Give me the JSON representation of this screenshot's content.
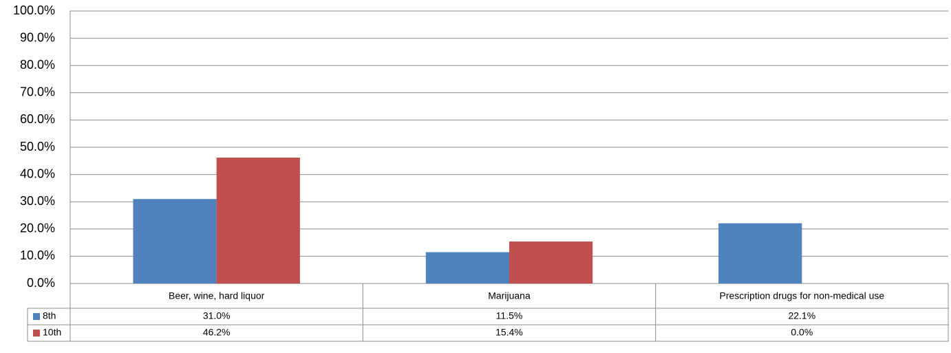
{
  "chart_data": {
    "type": "bar",
    "categories": [
      "Beer, wine, hard liquor",
      "Marijuana",
      "Prescription drugs for non-medical use"
    ],
    "series": [
      {
        "name": "8th",
        "color": "#4f81bd",
        "values": [
          31.0,
          11.5,
          22.1
        ],
        "value_labels": [
          "31.0%",
          "11.5%",
          "22.1%"
        ]
      },
      {
        "name": "10th",
        "color": "#c0504d",
        "values": [
          46.2,
          15.4,
          0.0
        ],
        "value_labels": [
          "46.2%",
          "15.4%",
          "0.0%"
        ]
      }
    ],
    "ylim": [
      0,
      100
    ],
    "yticks": [
      {
        "value": 0,
        "label": "0.0%"
      },
      {
        "value": 10,
        "label": "10.0%"
      },
      {
        "value": 20,
        "label": "20.0%"
      },
      {
        "value": 30,
        "label": "30.0%"
      },
      {
        "value": 40,
        "label": "40.0%"
      },
      {
        "value": 50,
        "label": "50.0%"
      },
      {
        "value": 60,
        "label": "60.0%"
      },
      {
        "value": 70,
        "label": "70.0%"
      },
      {
        "value": 80,
        "label": "80.0%"
      },
      {
        "value": 90,
        "label": "90.0%"
      },
      {
        "value": 100,
        "label": "100.0%"
      }
    ],
    "grid": true,
    "legend": "table"
  }
}
